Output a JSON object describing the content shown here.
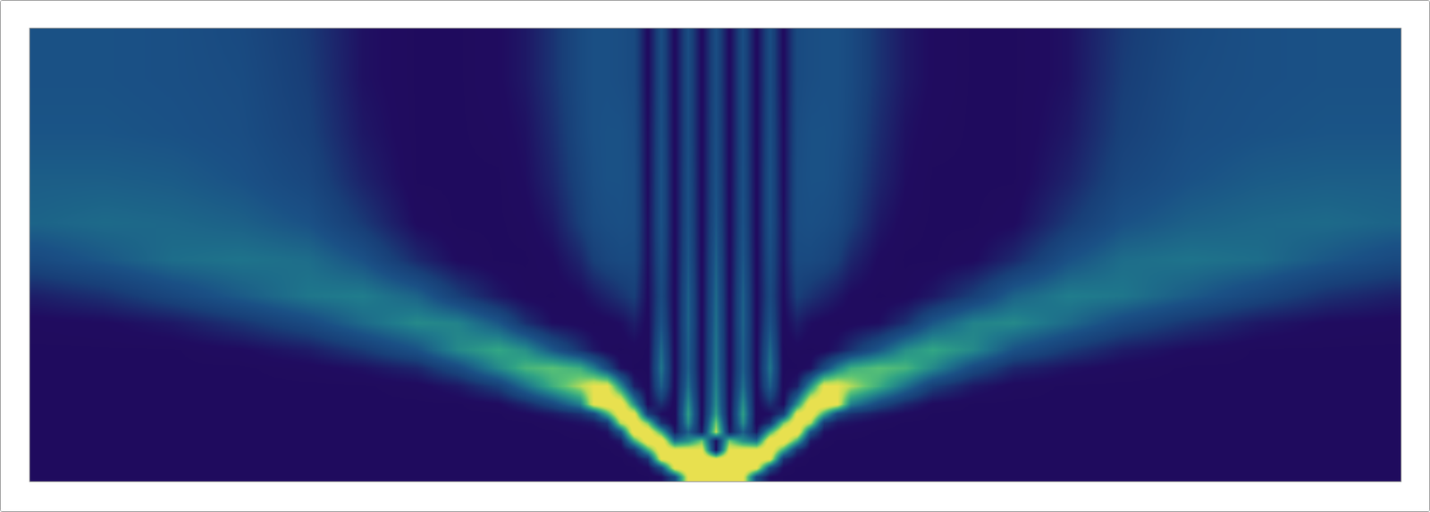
{
  "chart_data": {
    "type": "heatmap",
    "tick_labels": false,
    "x": [
      -50,
      -45,
      -40,
      -35,
      -30,
      -26,
      -22,
      -19,
      -16,
      -14,
      -12,
      -10,
      -9,
      -8,
      -7,
      -6,
      -5,
      -4,
      -3,
      -2,
      -1,
      0,
      1,
      2,
      3,
      4,
      5,
      6,
      7,
      8,
      9,
      10,
      12,
      14,
      16,
      19,
      22,
      26,
      30,
      35,
      40,
      45,
      50
    ],
    "y": [
      0,
      1,
      2,
      3,
      4,
      5,
      6,
      7,
      8,
      10,
      12,
      14,
      17,
      20,
      24,
      28,
      33,
      38,
      44,
      49
    ],
    "xlim": [
      -50.5,
      50.5
    ],
    "ylim": [
      -0.5,
      49.5
    ],
    "zlim": [
      0,
      9
    ],
    "z": [
      [
        0.2,
        0.2,
        0.2,
        0.2,
        0.2,
        0.2,
        0.2,
        0.2,
        0.2,
        0.2,
        0.2,
        0.2,
        0.2,
        0.2,
        0.2,
        0.2,
        0.2,
        0.5,
        2.5,
        9,
        10,
        10,
        10,
        9,
        2.5,
        0.5,
        0.2,
        0.2,
        0.2,
        0.2,
        0.2,
        0.2,
        0.2,
        0.2,
        0.2,
        0.2,
        0.2,
        0.2,
        0.2,
        0.2,
        0.2,
        0.2,
        0.2
      ],
      [
        0.2,
        0.2,
        0.2,
        0.2,
        0.2,
        0.2,
        0.2,
        0.2,
        0.2,
        0.2,
        0.2,
        0.2,
        0.2,
        0.2,
        0.2,
        0.2,
        0.4,
        2.5,
        9,
        10,
        10,
        10,
        10,
        10,
        9,
        2.5,
        0.4,
        0.2,
        0.2,
        0.2,
        0.2,
        0.2,
        0.2,
        0.2,
        0.2,
        0.2,
        0.2,
        0.2,
        0.2,
        0.2,
        0.2,
        0.2,
        0.2
      ],
      [
        0.2,
        0.2,
        0.2,
        0.2,
        0.2,
        0.2,
        0.2,
        0.2,
        0.2,
        0.2,
        0.2,
        0.2,
        0.2,
        0.2,
        0.2,
        0.4,
        1.5,
        9,
        10,
        10,
        10,
        9,
        10,
        10,
        10,
        9,
        1.5,
        0.4,
        0.2,
        0.2,
        0.2,
        0.2,
        0.2,
        0.2,
        0.2,
        0.2,
        0.2,
        0.2,
        0.2,
        0.2,
        0.2,
        0.2,
        0.2
      ],
      [
        0.2,
        0.2,
        0.2,
        0.2,
        0.2,
        0.2,
        0.2,
        0.2,
        0.2,
        0.2,
        0.2,
        0.2,
        0.2,
        0.2,
        0.3,
        1.5,
        6,
        10,
        9,
        9,
        9,
        0.5,
        9,
        9,
        9,
        10,
        6,
        1.5,
        0.3,
        0.2,
        0.2,
        0.2,
        0.2,
        0.2,
        0.2,
        0.2,
        0.2,
        0.2,
        0.2,
        0.2,
        0.2,
        0.2,
        0.2
      ],
      [
        0.2,
        0.2,
        0.2,
        0.2,
        0.2,
        0.2,
        0.2,
        0.2,
        0.2,
        0.2,
        0.2,
        0.2,
        0.2,
        0.3,
        0.8,
        6,
        10,
        10,
        4,
        5,
        7,
        0.5,
        7,
        5,
        4,
        10,
        10,
        6,
        0.8,
        0.3,
        0.2,
        0.2,
        0.2,
        0.2,
        0.2,
        0.2,
        0.2,
        0.2,
        0.2,
        0.2,
        0.2,
        0.2,
        0.2
      ],
      [
        0.2,
        0.2,
        0.2,
        0.2,
        0.2,
        0.2,
        0.2,
        0.2,
        0.2,
        0.2,
        0.2,
        0.3,
        0.3,
        0.6,
        3,
        10,
        10,
        6,
        0.8,
        3.5,
        0.8,
        8,
        0.8,
        3.5,
        0.8,
        6,
        10,
        10,
        3,
        0.6,
        0.3,
        0.3,
        0.2,
        0.2,
        0.2,
        0.2,
        0.2,
        0.2,
        0.2,
        0.2,
        0.2,
        0.2,
        0.2
      ],
      [
        0.2,
        0.2,
        0.2,
        0.2,
        0.2,
        0.2,
        0.2,
        0.2,
        0.2,
        0.2,
        0.3,
        0.6,
        0.8,
        1.8,
        8,
        10,
        7,
        1.5,
        0.2,
        5,
        0.3,
        7,
        0.3,
        5,
        0.2,
        1.5,
        7,
        10,
        8,
        1.8,
        0.8,
        0.6,
        0.3,
        0.2,
        0.2,
        0.2,
        0.2,
        0.2,
        0.2,
        0.2,
        0.2,
        0.2,
        0.2
      ],
      [
        0.2,
        0.2,
        0.2,
        0.2,
        0.2,
        0.2,
        0.2,
        0.2,
        0.2,
        0.4,
        0.8,
        1.5,
        2.5,
        6,
        10,
        9,
        2,
        0.5,
        0.2,
        5.5,
        0.3,
        5.5,
        0.3,
        5.5,
        0.2,
        0.5,
        2,
        9,
        10,
        6,
        2.5,
        1.5,
        0.8,
        0.4,
        0.2,
        0.2,
        0.2,
        0.2,
        0.2,
        0.2,
        0.2,
        0.2,
        0.2
      ],
      [
        0.2,
        0.2,
        0.2,
        0.2,
        0.2,
        0.2,
        0.2,
        0.2,
        0.4,
        1.2,
        2.5,
        4.5,
        9,
        10,
        10,
        5,
        0.4,
        1.5,
        0.2,
        5,
        0.3,
        5,
        0.3,
        5,
        0.2,
        1.5,
        0.4,
        5,
        10,
        10,
        9,
        4.5,
        2.5,
        1.2,
        0.4,
        0.2,
        0.2,
        0.2,
        0.2,
        0.2,
        0.2,
        0.2,
        0.2
      ],
      [
        0.2,
        0.2,
        0.2,
        0.2,
        0.2,
        0.2,
        0.3,
        0.8,
        2,
        4,
        6,
        7.8,
        9,
        9,
        5,
        1,
        0.2,
        3.5,
        0.3,
        4,
        0.3,
        4.6,
        0.3,
        4,
        0.3,
        3.5,
        0.2,
        1,
        5,
        9,
        9,
        7.8,
        6,
        4,
        2,
        0.8,
        0.3,
        0.2,
        0.2,
        0.2,
        0.2,
        0.2,
        0.2
      ],
      [
        0.2,
        0.2,
        0.2,
        0.2,
        0.3,
        0.6,
        1.2,
        2.6,
        4.8,
        6.2,
        6.6,
        6,
        4.5,
        2.5,
        0.6,
        0.2,
        0.2,
        4.2,
        0.3,
        3.5,
        0.3,
        4.3,
        0.3,
        3.5,
        0.3,
        4.2,
        0.2,
        0.2,
        0.6,
        2.5,
        4.5,
        6,
        6.6,
        6.2,
        4.8,
        2.6,
        1.2,
        0.6,
        0.3,
        0.2,
        0.2,
        0.2,
        0.2
      ],
      [
        0.2,
        0.2,
        0.2,
        0.4,
        0.9,
        1.8,
        3,
        4.8,
        5.7,
        5,
        3.2,
        1.6,
        0.8,
        0.3,
        0.2,
        0.3,
        0.2,
        3.8,
        0.3,
        3.5,
        0.3,
        4.2,
        0.3,
        3.5,
        0.3,
        3.8,
        0.2,
        0.3,
        0.2,
        0.3,
        0.8,
        1.6,
        3.2,
        5,
        5.7,
        4.8,
        3,
        1.8,
        0.9,
        0.4,
        0.2,
        0.2,
        0.2
      ],
      [
        0.3,
        0.4,
        0.8,
        1.6,
        2.6,
        3.8,
        4.8,
        4.6,
        3.2,
        1.5,
        0.5,
        0.3,
        0.2,
        0.3,
        0.5,
        1,
        0.3,
        3,
        0.3,
        3.6,
        0.3,
        4,
        0.3,
        3.6,
        0.3,
        3,
        0.3,
        1,
        0.5,
        0.3,
        0.2,
        0.3,
        0.5,
        1.5,
        3.2,
        4.6,
        4.8,
        3.8,
        2.6,
        1.6,
        0.8,
        0.4,
        0.3
      ],
      [
        1,
        1.5,
        2.4,
        3.3,
        4.2,
        4.4,
        3.6,
        2,
        0.8,
        0.3,
        0.2,
        0.4,
        0.8,
        1.2,
        1.6,
        2,
        0.4,
        2.6,
        0.3,
        3.5,
        0.3,
        3.8,
        0.3,
        3.5,
        0.3,
        2.6,
        0.4,
        2,
        1.6,
        1.2,
        0.8,
        0.4,
        0.2,
        0.3,
        0.8,
        2,
        3.6,
        4.4,
        4.2,
        3.3,
        2.4,
        1.5,
        1
      ],
      [
        2.6,
        3.2,
        3.9,
        4.1,
        3.9,
        3,
        1.3,
        0.4,
        0.2,
        0.2,
        0.4,
        1.2,
        2,
        2.4,
        2.6,
        2.6,
        0.5,
        2.8,
        0.3,
        3.2,
        0.3,
        3.5,
        0.3,
        3.2,
        0.3,
        2.8,
        0.5,
        2.6,
        2.6,
        2.4,
        2,
        1.2,
        0.4,
        0.2,
        0.2,
        0.4,
        1.3,
        3,
        3.9,
        4.1,
        3.9,
        3.2,
        2.6
      ],
      [
        3.6,
        3.8,
        3.7,
        3.5,
        3,
        1.8,
        0.4,
        0.2,
        0.2,
        0.3,
        0.8,
        2,
        2.6,
        2.8,
        2.9,
        2.8,
        0.5,
        3,
        0.3,
        3,
        0.3,
        3.2,
        0.3,
        3,
        0.3,
        3,
        0.5,
        2.8,
        2.9,
        2.8,
        2.6,
        2,
        0.8,
        0.3,
        0.2,
        0.2,
        0.4,
        1.8,
        3,
        3.5,
        3.7,
        3.8,
        3.6
      ],
      [
        3.4,
        3.4,
        3.3,
        3,
        2.4,
        1.1,
        0.2,
        0.2,
        0.2,
        0.5,
        1.2,
        2.3,
        2.8,
        3,
        3,
        2.8,
        0.4,
        3,
        0.3,
        2.9,
        0.3,
        3,
        0.3,
        2.9,
        0.3,
        3,
        0.4,
        2.8,
        3,
        3,
        2.8,
        2.3,
        1.2,
        0.5,
        0.2,
        0.2,
        0.2,
        1.1,
        2.4,
        3,
        3.3,
        3.4,
        3.4
      ],
      [
        3.1,
        3.1,
        3,
        2.8,
        2.1,
        0.8,
        0.2,
        0.2,
        0.3,
        0.6,
        1.4,
        2.5,
        2.9,
        3,
        3,
        2.7,
        0.4,
        2.9,
        0.3,
        2.8,
        0.3,
        2.9,
        0.3,
        2.8,
        0.3,
        2.9,
        0.4,
        2.7,
        3,
        3,
        2.9,
        2.5,
        1.4,
        0.6,
        0.3,
        0.2,
        0.2,
        0.8,
        2.1,
        2.8,
        3,
        3.1,
        3.1
      ],
      [
        3,
        3,
        2.9,
        2.7,
        1.9,
        0.6,
        0.2,
        0.2,
        0.4,
        0.8,
        1.6,
        2.6,
        2.9,
        2.9,
        2.8,
        2.6,
        0.3,
        2.8,
        0.3,
        2.8,
        0.3,
        2.8,
        0.3,
        2.8,
        0.3,
        2.8,
        0.3,
        2.6,
        2.8,
        2.9,
        2.9,
        2.6,
        1.6,
        0.8,
        0.4,
        0.2,
        0.2,
        0.6,
        1.9,
        2.7,
        2.9,
        3,
        3
      ],
      [
        3,
        3,
        2.9,
        2.6,
        1.8,
        0.6,
        0.2,
        0.2,
        0.4,
        0.8,
        1.6,
        2.6,
        2.9,
        2.9,
        2.8,
        2.6,
        0.3,
        2.8,
        0.3,
        2.8,
        0.3,
        2.8,
        0.3,
        2.8,
        0.3,
        2.8,
        0.3,
        2.6,
        2.8,
        2.9,
        2.9,
        2.6,
        1.6,
        0.8,
        0.4,
        0.2,
        0.2,
        0.6,
        1.8,
        2.6,
        2.9,
        3,
        3
      ]
    ]
  }
}
